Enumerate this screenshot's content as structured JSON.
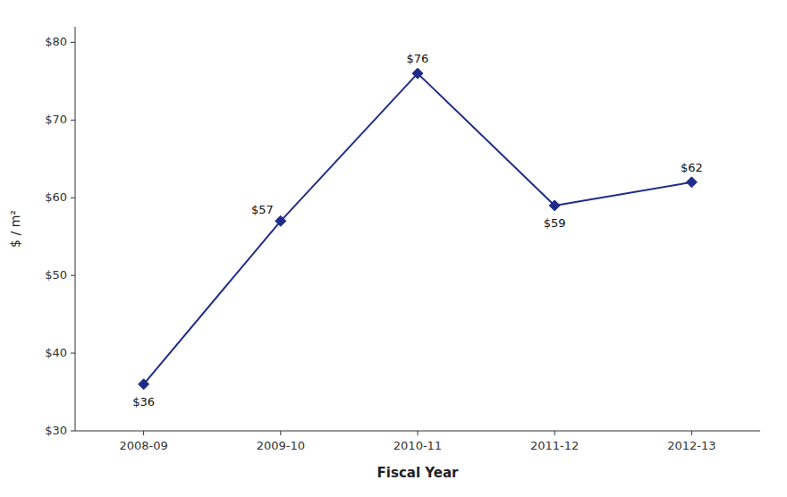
{
  "chart_data": {
    "type": "line",
    "categories": [
      "2008-09",
      "2009-10",
      "2010-11",
      "2011-12",
      "2012-13"
    ],
    "values": [
      36,
      57,
      76,
      59,
      62
    ],
    "value_labels": [
      "$36",
      "$57",
      "$76",
      "$59",
      "$62"
    ],
    "data_labels": true,
    "x_label": "Fiscal Year",
    "y_label": "$ / m²",
    "ylim": [
      30,
      82
    ],
    "yticks": [
      {
        "value": 30,
        "label": "$30"
      },
      {
        "value": 40,
        "label": "$40"
      },
      {
        "value": 50,
        "label": "$50"
      },
      {
        "value": 60,
        "label": "$60"
      },
      {
        "value": 70,
        "label": "$70"
      },
      {
        "value": 80,
        "label": "$80"
      }
    ],
    "color": "#1F2D8A",
    "marker": "diamond",
    "grid": false
  }
}
